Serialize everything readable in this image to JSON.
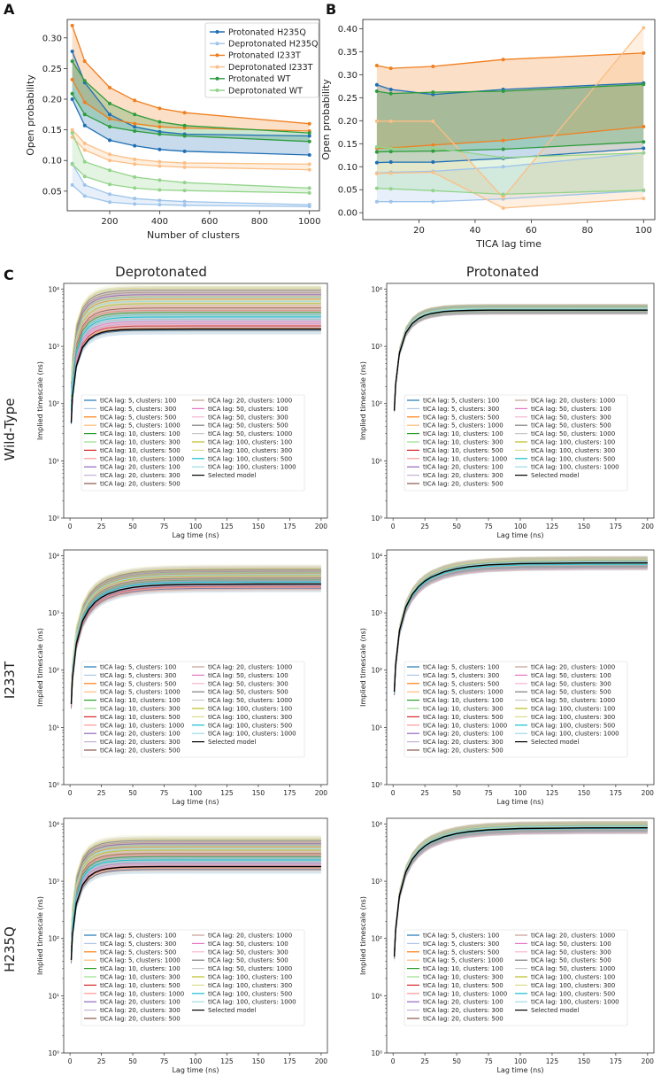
{
  "panel_letters": {
    "a": "A",
    "b": "B",
    "c": "C"
  },
  "colors": {
    "prot_h235q": "#1f6fb4",
    "deprot_h235q": "#9ec4ea",
    "prot_i233t": "#f07f1f",
    "deprot_i233t": "#fbbf85",
    "prot_wt": "#2c9c3c",
    "deprot_wt": "#93d48a"
  },
  "chart_data": [
    {
      "id": "A",
      "type": "line",
      "xlabel": "Number of clusters",
      "ylabel": "Open probability",
      "xlim": [
        30,
        1040
      ],
      "ylim": [
        0.018,
        0.33
      ],
      "xticks": [
        200,
        400,
        600,
        800,
        1000
      ],
      "yticks": [
        0.05,
        0.1,
        0.15,
        0.2,
        0.25,
        0.3
      ],
      "ytick_labels": [
        "0.05",
        "0.10",
        "0.15",
        "0.20",
        "0.25",
        "0.30"
      ],
      "legend_position": "top-right",
      "x": [
        50,
        100,
        200,
        300,
        400,
        500,
        1000
      ],
      "series": [
        {
          "name": "Protonated H235Q",
          "color_key": "prot_h235q",
          "upper": [
            0.278,
            0.227,
            0.175,
            0.155,
            0.147,
            0.143,
            0.14
          ],
          "lower": [
            0.2,
            0.157,
            0.133,
            0.124,
            0.118,
            0.115,
            0.109
          ]
        },
        {
          "name": "Deprotonated H235Q",
          "color_key": "deprot_h235q",
          "upper": [
            0.095,
            0.06,
            0.045,
            0.038,
            0.035,
            0.033,
            0.028
          ],
          "lower": [
            0.06,
            0.042,
            0.032,
            0.029,
            0.028,
            0.027,
            0.025
          ]
        },
        {
          "name": "Protonated I233T",
          "color_key": "prot_i233t",
          "upper": [
            0.32,
            0.262,
            0.219,
            0.198,
            0.185,
            0.178,
            0.16
          ],
          "lower": [
            0.232,
            0.195,
            0.168,
            0.16,
            0.155,
            0.153,
            0.148
          ]
        },
        {
          "name": "Deprotonated I233T",
          "color_key": "deprot_i233t",
          "upper": [
            0.15,
            0.128,
            0.11,
            0.102,
            0.098,
            0.096,
            0.094
          ],
          "lower": [
            0.138,
            0.117,
            0.1,
            0.094,
            0.091,
            0.089,
            0.085
          ]
        },
        {
          "name": "Protonated WT",
          "color_key": "prot_wt",
          "upper": [
            0.262,
            0.23,
            0.193,
            0.175,
            0.163,
            0.157,
            0.145
          ],
          "lower": [
            0.209,
            0.175,
            0.155,
            0.148,
            0.143,
            0.14,
            0.131
          ]
        },
        {
          "name": "Deprotonated WT",
          "color_key": "deprot_wt",
          "upper": [
            0.145,
            0.098,
            0.084,
            0.073,
            0.068,
            0.064,
            0.055
          ],
          "lower": [
            0.094,
            0.074,
            0.061,
            0.055,
            0.052,
            0.051,
            0.047
          ]
        }
      ]
    },
    {
      "id": "B",
      "type": "line",
      "xlabel": "TICA lag time",
      "ylabel": "Open probability",
      "xlim": [
        0,
        104
      ],
      "ylim": [
        -0.015,
        0.42
      ],
      "xticks": [
        20,
        40,
        60,
        80,
        100
      ],
      "yticks": [
        0.0,
        0.05,
        0.1,
        0.15,
        0.2,
        0.25,
        0.3,
        0.35,
        0.4
      ],
      "ytick_labels": [
        "0.00",
        "0.05",
        "0.10",
        "0.15",
        "0.20",
        "0.25",
        "0.30",
        "0.35",
        "0.40"
      ],
      "x": [
        5,
        10,
        25,
        50,
        100
      ],
      "series": [
        {
          "name": "Protonated H235Q",
          "color_key": "prot_h235q",
          "upper": [
            0.278,
            0.268,
            0.257,
            0.268,
            0.282
          ],
          "lower": [
            0.109,
            0.11,
            0.11,
            0.118,
            0.14
          ]
        },
        {
          "name": "Deprotonated H235Q",
          "color_key": "deprot_h235q",
          "upper": [
            0.086,
            0.088,
            0.09,
            0.1,
            0.13
          ],
          "lower": [
            0.024,
            0.024,
            0.024,
            0.03,
            0.048
          ]
        },
        {
          "name": "Protonated I233T",
          "color_key": "prot_i233t",
          "upper": [
            0.32,
            0.314,
            0.318,
            0.333,
            0.347
          ],
          "lower": [
            0.14,
            0.141,
            0.147,
            0.157,
            0.187
          ]
        },
        {
          "name": "Deprotonated I233T",
          "color_key": "deprot_i233t",
          "upper": [
            0.199,
            0.199,
            0.199,
            0.033,
            0.402
          ],
          "lower": [
            0.085,
            0.086,
            0.088,
            0.01,
            0.031
          ]
        },
        {
          "name": "Protonated WT",
          "color_key": "prot_wt",
          "upper": [
            0.264,
            0.259,
            0.262,
            0.264,
            0.279
          ],
          "lower": [
            0.132,
            0.133,
            0.134,
            0.138,
            0.154
          ]
        },
        {
          "name": "Deprotonated WT",
          "color_key": "deprot_wt",
          "upper": [
            0.143,
            0.14,
            0.141,
            0.12,
            0.13
          ],
          "lower": [
            0.053,
            0.052,
            0.048,
            0.04,
            0.049
          ]
        }
      ]
    }
  ],
  "panel_c": {
    "col_headers": [
      "Deprotonated",
      "Protonated"
    ],
    "row_headers": [
      "Wild-Type",
      "I233T",
      "H235Q"
    ],
    "xlabel": "Lag time (ns)",
    "ylabel": "Implied timescale (ns)",
    "xlim": [
      -5,
      205
    ],
    "ylim_log10": [
      0,
      4.1
    ],
    "xticks": [
      0,
      25,
      50,
      75,
      100,
      125,
      150,
      175,
      200
    ],
    "ytick_labels": [
      "10⁰",
      "10¹",
      "10²",
      "10³",
      "10⁴"
    ],
    "legend_entries": [
      "tICA lag: 5, clusters: 100",
      "tICA lag: 5, clusters: 300",
      "tICA lag: 5, clusters: 500",
      "tICA lag: 5, clusters: 1000",
      "tICA lag: 10, clusters: 100",
      "tICA lag: 10, clusters: 300",
      "tICA lag: 10, clusters: 500",
      "tICA lag: 10, clusters: 1000",
      "tICA lag: 20, clusters: 100",
      "tICA lag: 20, clusters: 300",
      "tICA lag: 20, clusters: 500",
      "tICA lag: 20, clusters: 1000",
      "tICA lag: 50, clusters: 100",
      "tICA lag: 50, clusters: 300",
      "tICA lag: 50, clusters: 500",
      "tICA lag: 50, clusters: 1000",
      "tICA lag: 100, clusters: 100",
      "tICA lag: 100, clusters: 300",
      "tICA lag: 100, clusters: 500",
      "tICA lag: 100, clusters: 1000",
      "Selected model"
    ],
    "legend_colors": [
      "#1f77b4",
      "#aec7e8",
      "#ff7f0e",
      "#ffbb78",
      "#2ca02c",
      "#98df8a",
      "#d62728",
      "#ff9896",
      "#9467bd",
      "#c5b0d5",
      "#8c564b",
      "#c49c94",
      "#e377c2",
      "#f7b6d2",
      "#7f7f7f",
      "#c7c7c7",
      "#bcbd22",
      "#dbdb8d",
      "#17becf",
      "#9edae5",
      "#000000"
    ],
    "lag_points": [
      1,
      2,
      5,
      10,
      15,
      20,
      25,
      30,
      40,
      50,
      60,
      75,
      100,
      150,
      200
    ],
    "subplots": [
      {
        "id": "wt-deprot",
        "selected_plateau": 2000,
        "spread_top": 10500,
        "spread_low": 1900,
        "rise_ns": 10
      },
      {
        "id": "wt-prot",
        "selected_plateau": 4300,
        "spread_top": 4700,
        "spread_low": 4200,
        "rise_ns": 12
      },
      {
        "id": "i233t-deprot",
        "selected_plateau": 3200,
        "spread_top": 6000,
        "spread_low": 2700,
        "rise_ns": 20
      },
      {
        "id": "i233t-prot",
        "selected_plateau": 7500,
        "spread_top": 8500,
        "spread_low": 6500,
        "rise_ns": 25
      },
      {
        "id": "h235q-deprot",
        "selected_plateau": 1800,
        "spread_top": 5500,
        "spread_low": 1600,
        "rise_ns": 10
      },
      {
        "id": "h235q-prot",
        "selected_plateau": 8600,
        "spread_top": 9800,
        "spread_low": 7800,
        "rise_ns": 25
      }
    ]
  }
}
